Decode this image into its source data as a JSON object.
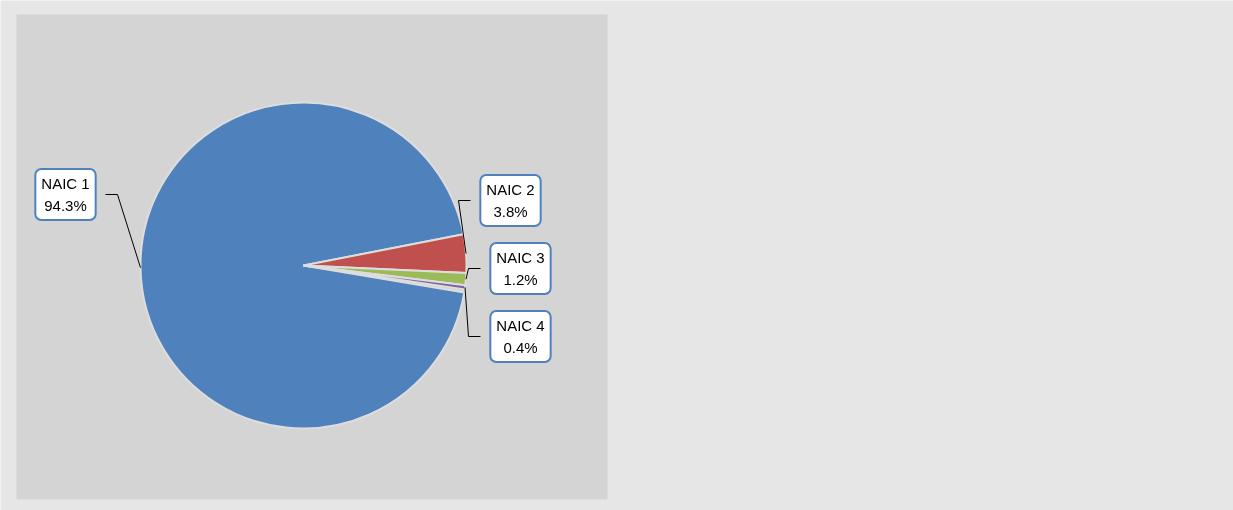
{
  "chart_data": {
    "type": "pie",
    "categories": [
      "NAIC 1",
      "NAIC 2",
      "NAIC 3",
      "NAIC 4"
    ],
    "values": [
      94.3,
      3.8,
      1.2,
      0.4
    ],
    "value_labels": [
      "94.3%",
      "3.8%",
      "1.2%",
      "0.4%"
    ],
    "colors": [
      "#4f81bd",
      "#c0504d",
      "#9bbb59",
      "#8064a2"
    ],
    "data_labels": true,
    "legend": false
  }
}
